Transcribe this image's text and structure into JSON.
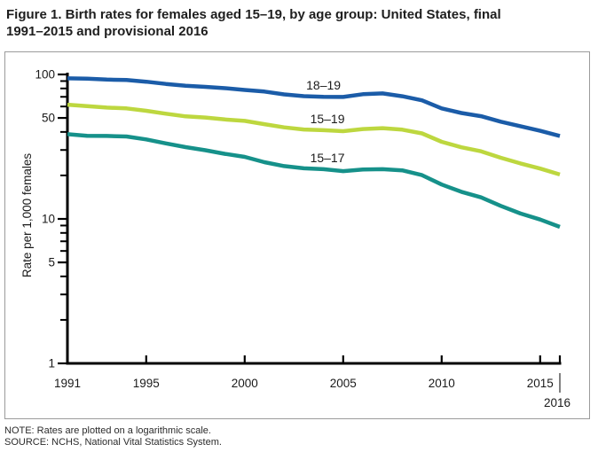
{
  "page": {
    "title_line1": "Figure 1. Birth rates for females aged 15–19, by age group: United States, final",
    "title_line2": "1991–2015 and provisional 2016"
  },
  "notes": {
    "note": "NOTE: Rates are plotted on a logarithmic scale.",
    "source": "SOURCE: NCHS, National Vital Statistics System."
  },
  "chart_data": {
    "type": "line",
    "title": "Figure 1. Birth rates for females aged 15–19, by age group: United States, final 1991–2015 and provisional 2016",
    "xlabel": "",
    "ylabel": "Rate per 1,000 females",
    "y_scale": "log",
    "ylim": [
      1,
      100
    ],
    "grid": false,
    "legend": "inline-labels",
    "y_major_ticks": [
      {
        "value": 100,
        "label": "100"
      },
      {
        "value": 50,
        "label": "50"
      },
      {
        "value": 10,
        "label": "10"
      },
      {
        "value": 5,
        "label": "5"
      },
      {
        "value": 1,
        "label": "1"
      }
    ],
    "y_minor_ticks": [
      90,
      80,
      70,
      60,
      40,
      30,
      20,
      9,
      8,
      7,
      6,
      4,
      3,
      2
    ],
    "x": [
      1991,
      1992,
      1993,
      1994,
      1995,
      1996,
      1997,
      1998,
      1999,
      2000,
      2001,
      2002,
      2003,
      2004,
      2005,
      2006,
      2007,
      2008,
      2009,
      2010,
      2011,
      2012,
      2013,
      2014,
      2015,
      2016
    ],
    "x_ticks": [
      {
        "year": 1991,
        "label": "1991",
        "row": 1
      },
      {
        "year": 1995,
        "label": "1995",
        "row": 1
      },
      {
        "year": 2000,
        "label": "2000",
        "row": 1
      },
      {
        "year": 2005,
        "label": "2005",
        "row": 1
      },
      {
        "year": 2010,
        "label": "2010",
        "row": 1
      },
      {
        "year": 2015,
        "label": "2015",
        "row": 1
      },
      {
        "year": 2016,
        "label": "2016",
        "row": 2
      }
    ],
    "series": [
      {
        "name": "18–19",
        "color": "#1b5ca8",
        "label_at": 2004,
        "values": [
          94.0,
          93.6,
          92.1,
          91.5,
          89.1,
          86.0,
          83.6,
          82.0,
          80.3,
          78.1,
          76.1,
          72.8,
          70.7,
          70.0,
          69.9,
          73.0,
          73.9,
          70.6,
          66.2,
          58.2,
          54.1,
          51.4,
          47.1,
          43.8,
          40.7,
          37.5
        ]
      },
      {
        "name": "15–19",
        "color": "#bdd73f",
        "label_at": 2004.2,
        "values": [
          61.8,
          60.3,
          59.0,
          58.2,
          56.0,
          53.5,
          51.3,
          50.3,
          48.8,
          47.7,
          45.3,
          43.0,
          41.6,
          41.1,
          40.5,
          41.9,
          42.5,
          41.5,
          39.1,
          34.2,
          31.3,
          29.4,
          26.5,
          24.2,
          22.3,
          20.3
        ]
      },
      {
        "name": "15–17",
        "color": "#16918a",
        "label_at": 2004.2,
        "values": [
          38.6,
          37.6,
          37.5,
          37.2,
          35.5,
          33.3,
          31.4,
          29.9,
          28.2,
          26.9,
          24.7,
          23.2,
          22.4,
          22.1,
          21.4,
          22.0,
          22.1,
          21.7,
          20.1,
          17.3,
          15.4,
          14.1,
          12.3,
          10.9,
          9.9,
          8.8
        ]
      }
    ],
    "axis_color": "#000000",
    "text_color": "#1a1a1a",
    "divider_color": "#555555"
  }
}
